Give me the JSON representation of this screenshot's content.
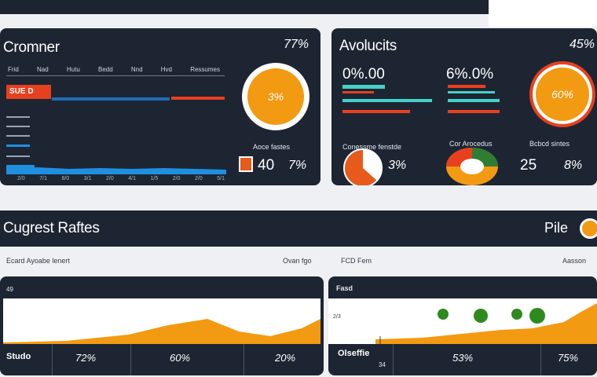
{
  "customer": {
    "title": "Cromner",
    "pct": "77%",
    "columns": [
      "Frid",
      "Nad",
      "Hutu",
      "Bedd",
      "Nnd",
      "Hvd",
      "Ressumes"
    ],
    "tag": "SUE D",
    "xlabels": [
      "2/0",
      "7/1",
      "8/0",
      "3/1",
      "2/0",
      "4/1",
      "1/5",
      "2/0",
      "2/0",
      "5/1"
    ],
    "donut_value": "3%",
    "kpi_label": "Aoce fastes",
    "kpi_num": "40",
    "kpi_pct": "7%"
  },
  "analytics": {
    "title": "Avolucits",
    "pct": "45%",
    "stat1": "0%.00",
    "stat2": "6%.0%",
    "donut_value": "60%",
    "pie1_label": "Conessme fenstde",
    "pie1_pct": "3%",
    "pie2_label": "Cor Arocedus",
    "kpi_label": "Bcbcd sintes",
    "kpi_num": "25",
    "kpi_pct": "8%"
  },
  "section": {
    "title": "Cugrest Raftes",
    "pile": "Pile",
    "left_label": "Ecard Ayoabe lenert",
    "left_right_label": "Ovan fgo",
    "right_label": "FCD Fem",
    "right_right_label": "Aasson"
  },
  "chart_left": {
    "y_tick": "49",
    "foot_label": "Studo",
    "foot_nums": [
      "72%",
      "60%",
      "20%"
    ]
  },
  "chart_right": {
    "title": "Fasd",
    "y_tick": "2/3",
    "foot_label": "Olseffie",
    "foot_sub": "34",
    "foot_nums": [
      "53%",
      "75%"
    ]
  },
  "colors": {
    "panel": "#1d2533",
    "orange": "#f39a13",
    "red": "#e7401f",
    "teal": "#45d1c7",
    "blue": "#1f8fe0",
    "green": "#2f7d32"
  }
}
